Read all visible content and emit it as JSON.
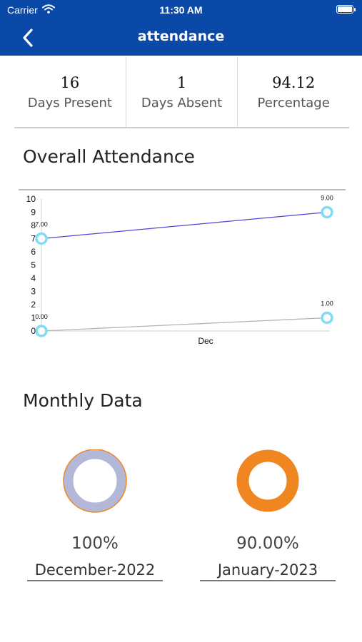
{
  "status_bar": {
    "carrier": "Carrier",
    "time": "11:30 AM",
    "wifi_icon": "wifi-icon",
    "battery_icon": "battery-icon"
  },
  "header": {
    "title": "attendance",
    "back_icon": "chevron-left-icon",
    "background": "#0b49a8"
  },
  "summary": {
    "present_value": "16",
    "present_label": "Days Present",
    "absent_value": "1",
    "absent_label": "Days Absent",
    "percentage_value": "94.12",
    "percentage_label": "Percentage"
  },
  "overall": {
    "title": "Overall Attendance"
  },
  "chart_data": {
    "type": "line",
    "categories": [
      "",
      "Dec"
    ],
    "ylim": [
      0,
      10
    ],
    "yticks": [
      "0",
      "1",
      "2",
      "3",
      "4",
      "5",
      "6",
      "7",
      "8",
      "9",
      "10"
    ],
    "xlabel": "Dec",
    "series": [
      {
        "color": "#4a46d6",
        "values": [
          7,
          9
        ],
        "labels": [
          "7.00",
          "9.00"
        ]
      },
      {
        "color": "#b5b5b5",
        "values": [
          0,
          1
        ],
        "labels": [
          "0.00",
          "1.00"
        ]
      }
    ],
    "marker_color": "#7fdcf2"
  },
  "monthly": {
    "title": "Monthly Data",
    "months": [
      {
        "percentage": "100%",
        "name": "December-2022",
        "ring_color": "#b3b8d8",
        "ring_border": "#f0861f",
        "fraction": 1.0
      },
      {
        "percentage": "90.00%",
        "name": "January-2023",
        "ring_color": "#f0861f",
        "ring_border": "#f0861f",
        "fraction": 0.9
      }
    ]
  }
}
